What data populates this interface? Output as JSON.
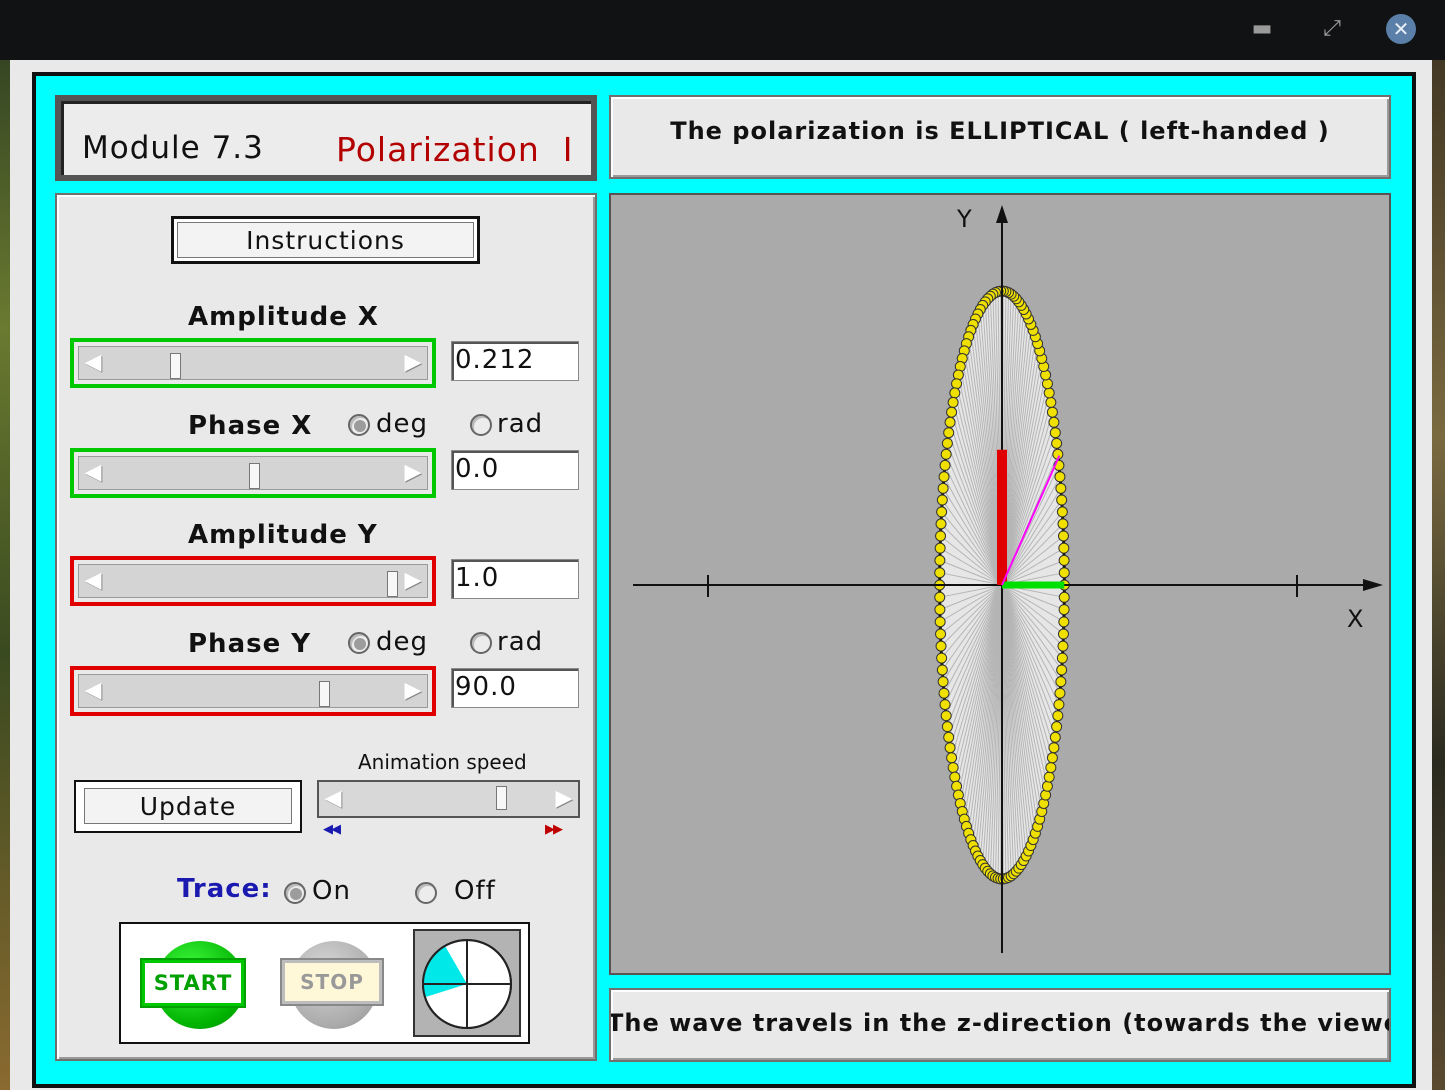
{
  "window": {
    "minimize_icon": "minimize-icon",
    "maximize_icon": "maximize-icon",
    "close_icon": "close-icon"
  },
  "header": {
    "module_label": "Module 7.3",
    "module_name": "Polarization  I",
    "status": "The polarization is ELLIPTICAL ( left-handed )"
  },
  "controls": {
    "instructions_label": "Instructions",
    "amplitude_x": {
      "label": "Amplitude X",
      "value": "0.212",
      "slider_fraction": 0.21,
      "frame_color": "#00c800"
    },
    "phase_x": {
      "label": "Phase X",
      "value": "0.0",
      "slider_fraction": 0.5,
      "unit_deg": "deg",
      "unit_rad": "rad",
      "selected_unit": "deg",
      "frame_color": "#00c800"
    },
    "amplitude_y": {
      "label": "Amplitude Y",
      "value": "1.0",
      "slider_fraction": 1.0,
      "frame_color": "#e00000"
    },
    "phase_y": {
      "label": "Phase Y",
      "value": "90.0",
      "slider_fraction": 0.75,
      "unit_deg": "deg",
      "unit_rad": "rad",
      "selected_unit": "deg",
      "frame_color": "#e00000"
    },
    "update_label": "Update",
    "animation_speed": {
      "label": "Animation speed",
      "slider_fraction": 0.82,
      "slow_icon": "rewind-icon",
      "fast_icon": "fast-forward-icon"
    },
    "trace": {
      "label": "Trace:",
      "on_label": "On",
      "off_label": "Off",
      "selected": "On"
    },
    "start_label": "START",
    "stop_label": "STOP",
    "clock_icon": "clock-icon"
  },
  "plot": {
    "x_axis_label": "X",
    "y_axis_label": "Y",
    "amplitude_x": 0.212,
    "amplitude_y": 1.0,
    "trace_color": "#f0e000",
    "ex_color": "#00e000",
    "ey_color": "#e00000",
    "resultant_color": "#ff00ff"
  },
  "footer": {
    "text": "The wave travels in the z-direction (towards the viewer)"
  }
}
